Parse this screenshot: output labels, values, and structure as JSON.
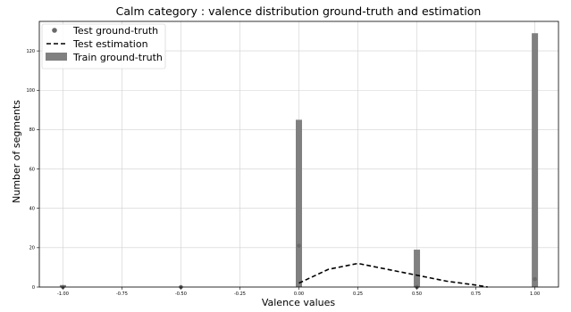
{
  "chart_data": {
    "type": "bar",
    "title": "Calm category : valence distribution ground-truth and estimation",
    "xlabel": "Valence values",
    "ylabel": "Number of segments",
    "xlim": [
      -1.1,
      1.1
    ],
    "ylim": [
      0,
      135
    ],
    "xticks": [
      -1.0,
      -0.75,
      -0.5,
      -0.25,
      0.0,
      0.25,
      0.5,
      0.75,
      1.0
    ],
    "xtick_labels": [
      "-1.00",
      "-0.75",
      "-0.50",
      "-0.25",
      "0.00",
      "0.25",
      "0.50",
      "0.75",
      "1.00"
    ],
    "yticks": [
      0,
      20,
      40,
      60,
      80,
      100,
      120
    ],
    "ytick_labels": [
      "0",
      "20",
      "40",
      "60",
      "80",
      "100",
      "120"
    ],
    "grid": true,
    "legend_position": "top-left",
    "colors": {
      "train": "#808080",
      "test_points": "#696969",
      "estimation": "#000000",
      "grid": "#d0d0d0"
    },
    "series": [
      {
        "name": "Test ground-truth",
        "kind": "scatter",
        "x": [
          -1.0,
          -0.5,
          0.0,
          0.5,
          1.0
        ],
        "y": [
          0,
          0,
          21,
          0,
          4
        ]
      },
      {
        "name": "Test estimation",
        "kind": "line-dashed",
        "x": [
          0.0,
          0.125,
          0.25,
          0.375,
          0.5,
          0.625,
          0.75,
          0.8
        ],
        "y": [
          2,
          9,
          12,
          9,
          6,
          3,
          1,
          0
        ]
      },
      {
        "name": "Train ground-truth",
        "kind": "bar",
        "x": [
          -1.0,
          -0.5,
          0.0,
          0.5,
          1.0
        ],
        "y": [
          1,
          0,
          85,
          19,
          129
        ]
      }
    ]
  }
}
